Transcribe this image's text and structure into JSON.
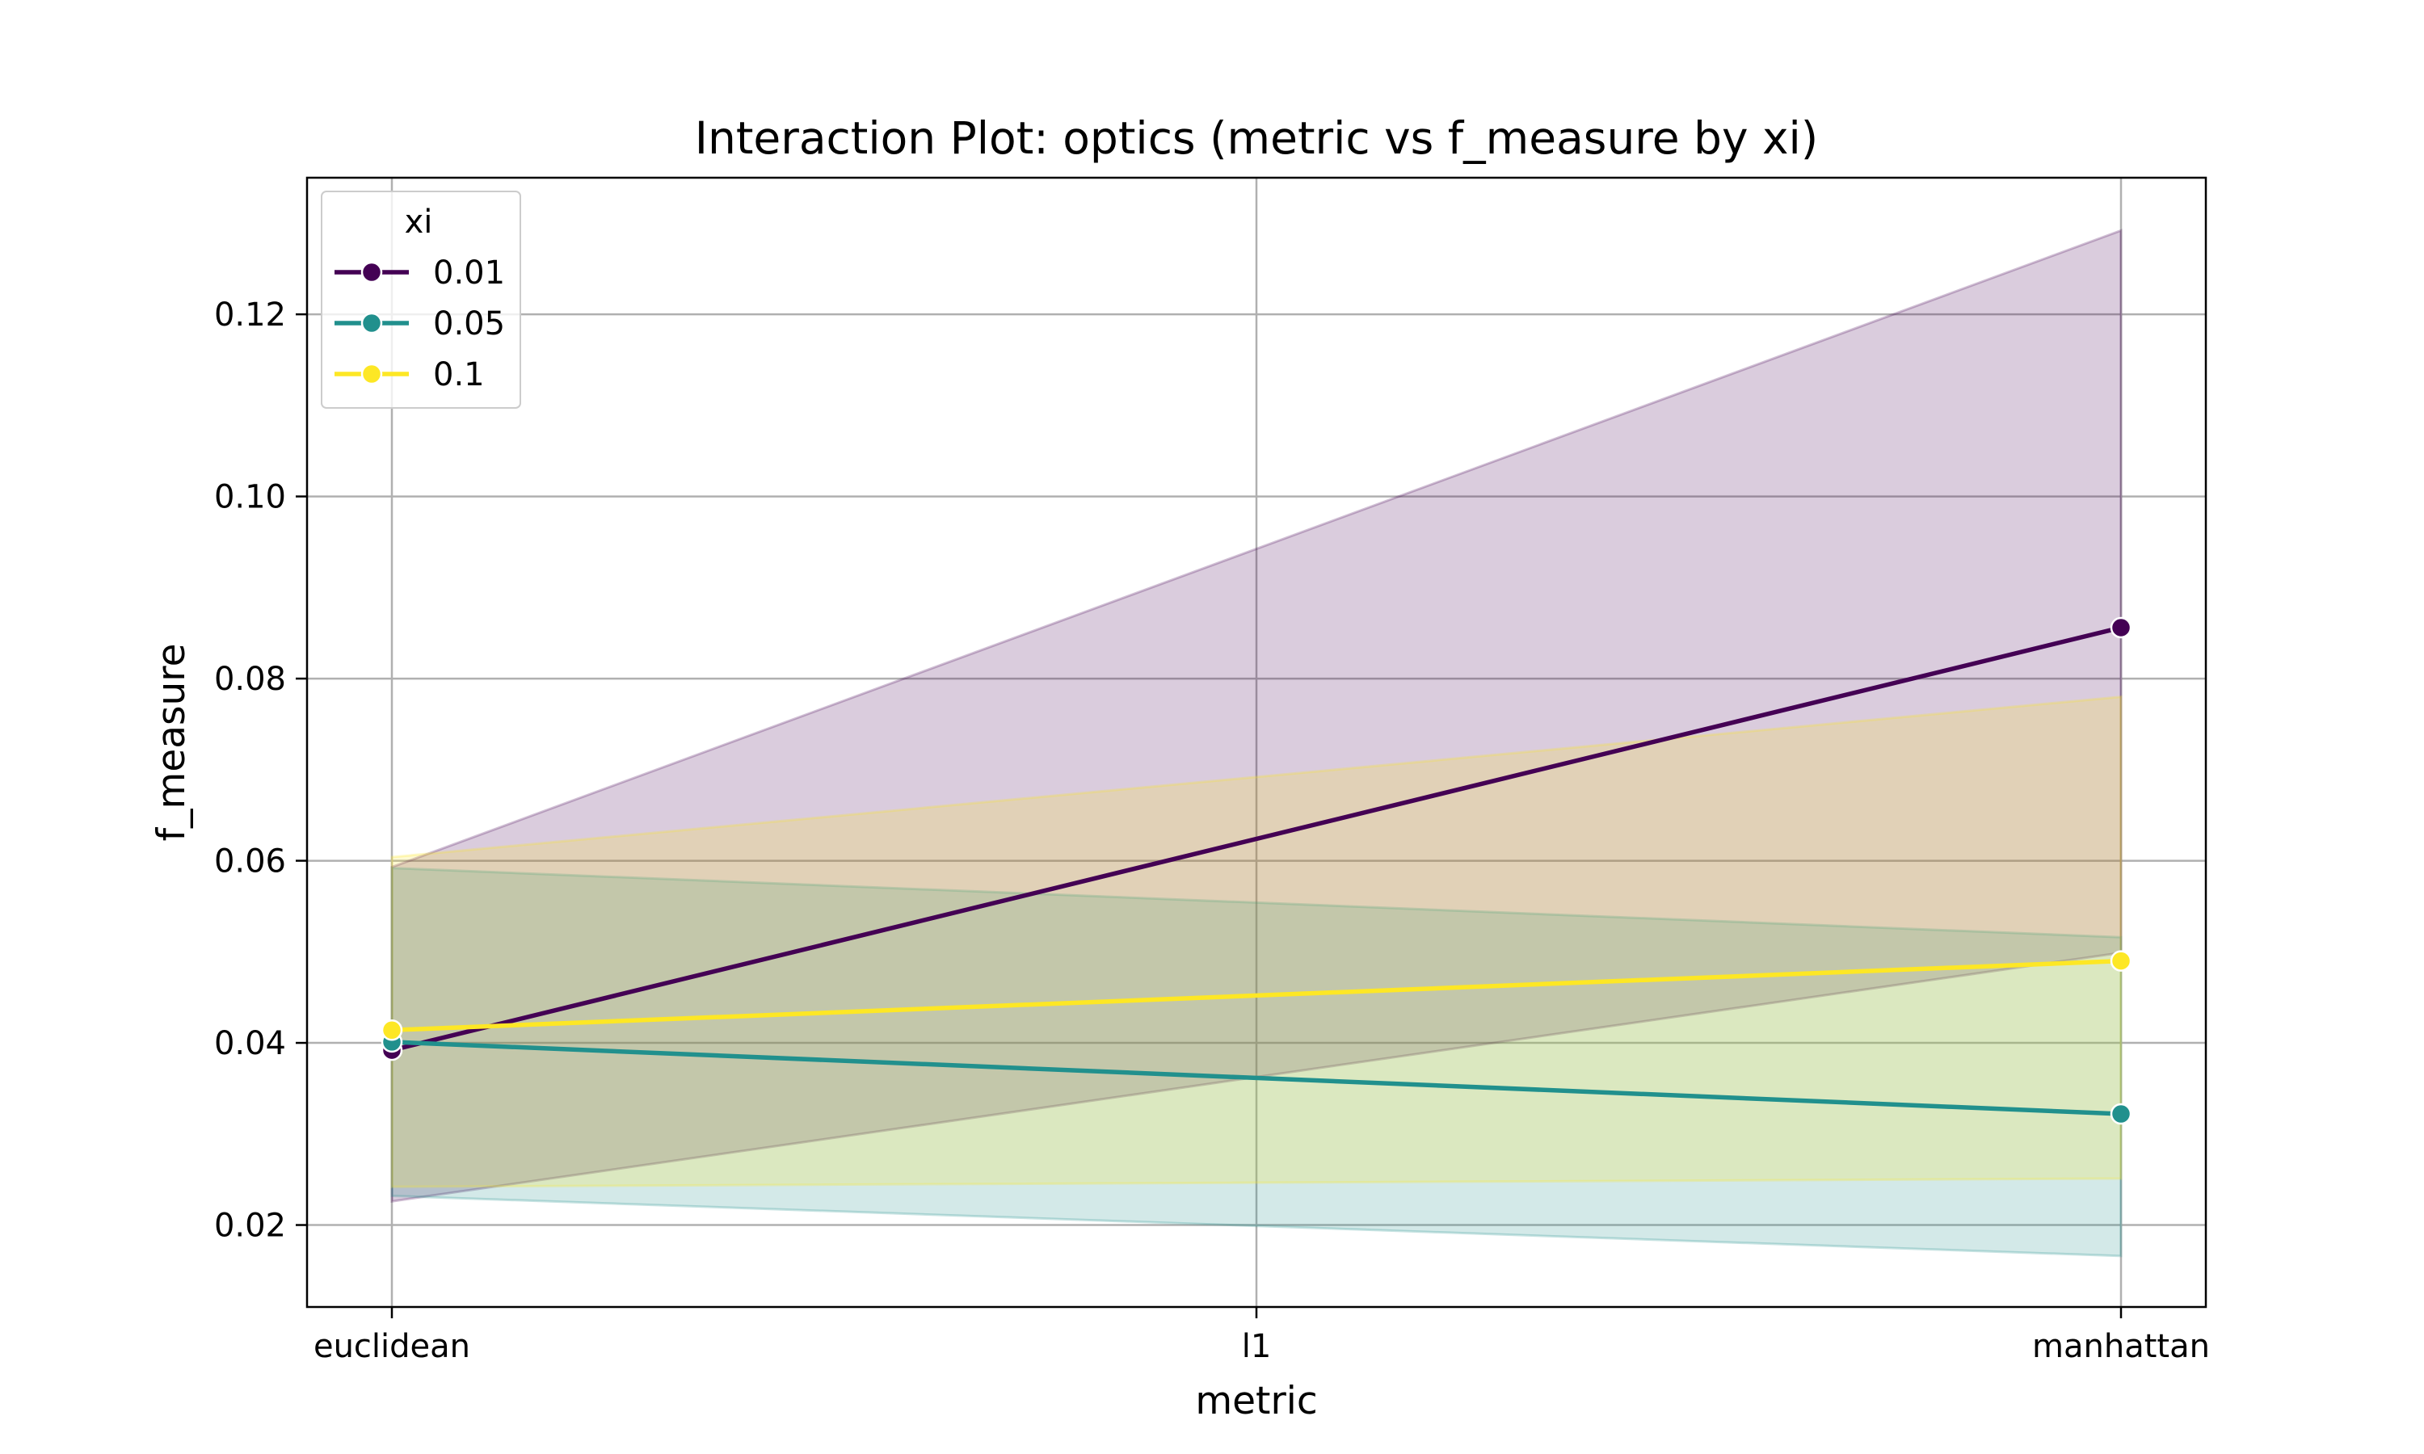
{
  "chart_data": {
    "type": "line",
    "title": "Interaction Plot: optics (metric vs f_measure by xi)",
    "xlabel": "metric",
    "ylabel": "f_measure",
    "categories": [
      "euclidean",
      "l1",
      "manhattan"
    ],
    "ylim": [
      0.011,
      0.135
    ],
    "yticks": [
      0.02,
      0.04,
      0.06,
      0.08,
      0.1,
      0.12
    ],
    "ytick_labels": [
      "0.02",
      "0.04",
      "0.06",
      "0.08",
      "0.10",
      "0.12"
    ],
    "grid": true,
    "legend": {
      "title": "xi",
      "placement": "top-left"
    },
    "series": [
      {
        "name": "0.01",
        "color": "#440154",
        "x": [
          "euclidean",
          "manhattan"
        ],
        "values": [
          0.0392,
          0.0856
        ],
        "ci_low": [
          0.0226,
          0.0499
        ],
        "ci_high": [
          0.0593,
          0.1292
        ]
      },
      {
        "name": "0.05",
        "color": "#21908d",
        "x": [
          "euclidean",
          "manhattan"
        ],
        "values": [
          0.0401,
          0.0322
        ],
        "ci_low": [
          0.0232,
          0.0166
        ],
        "ci_high": [
          0.0592,
          0.0516
        ]
      },
      {
        "name": "0.1",
        "color": "#fde725",
        "x": [
          "euclidean",
          "manhattan"
        ],
        "values": [
          0.0414,
          0.049
        ],
        "ci_low": [
          0.0242,
          0.0251
        ],
        "ci_high": [
          0.0604,
          0.078
        ]
      }
    ]
  }
}
